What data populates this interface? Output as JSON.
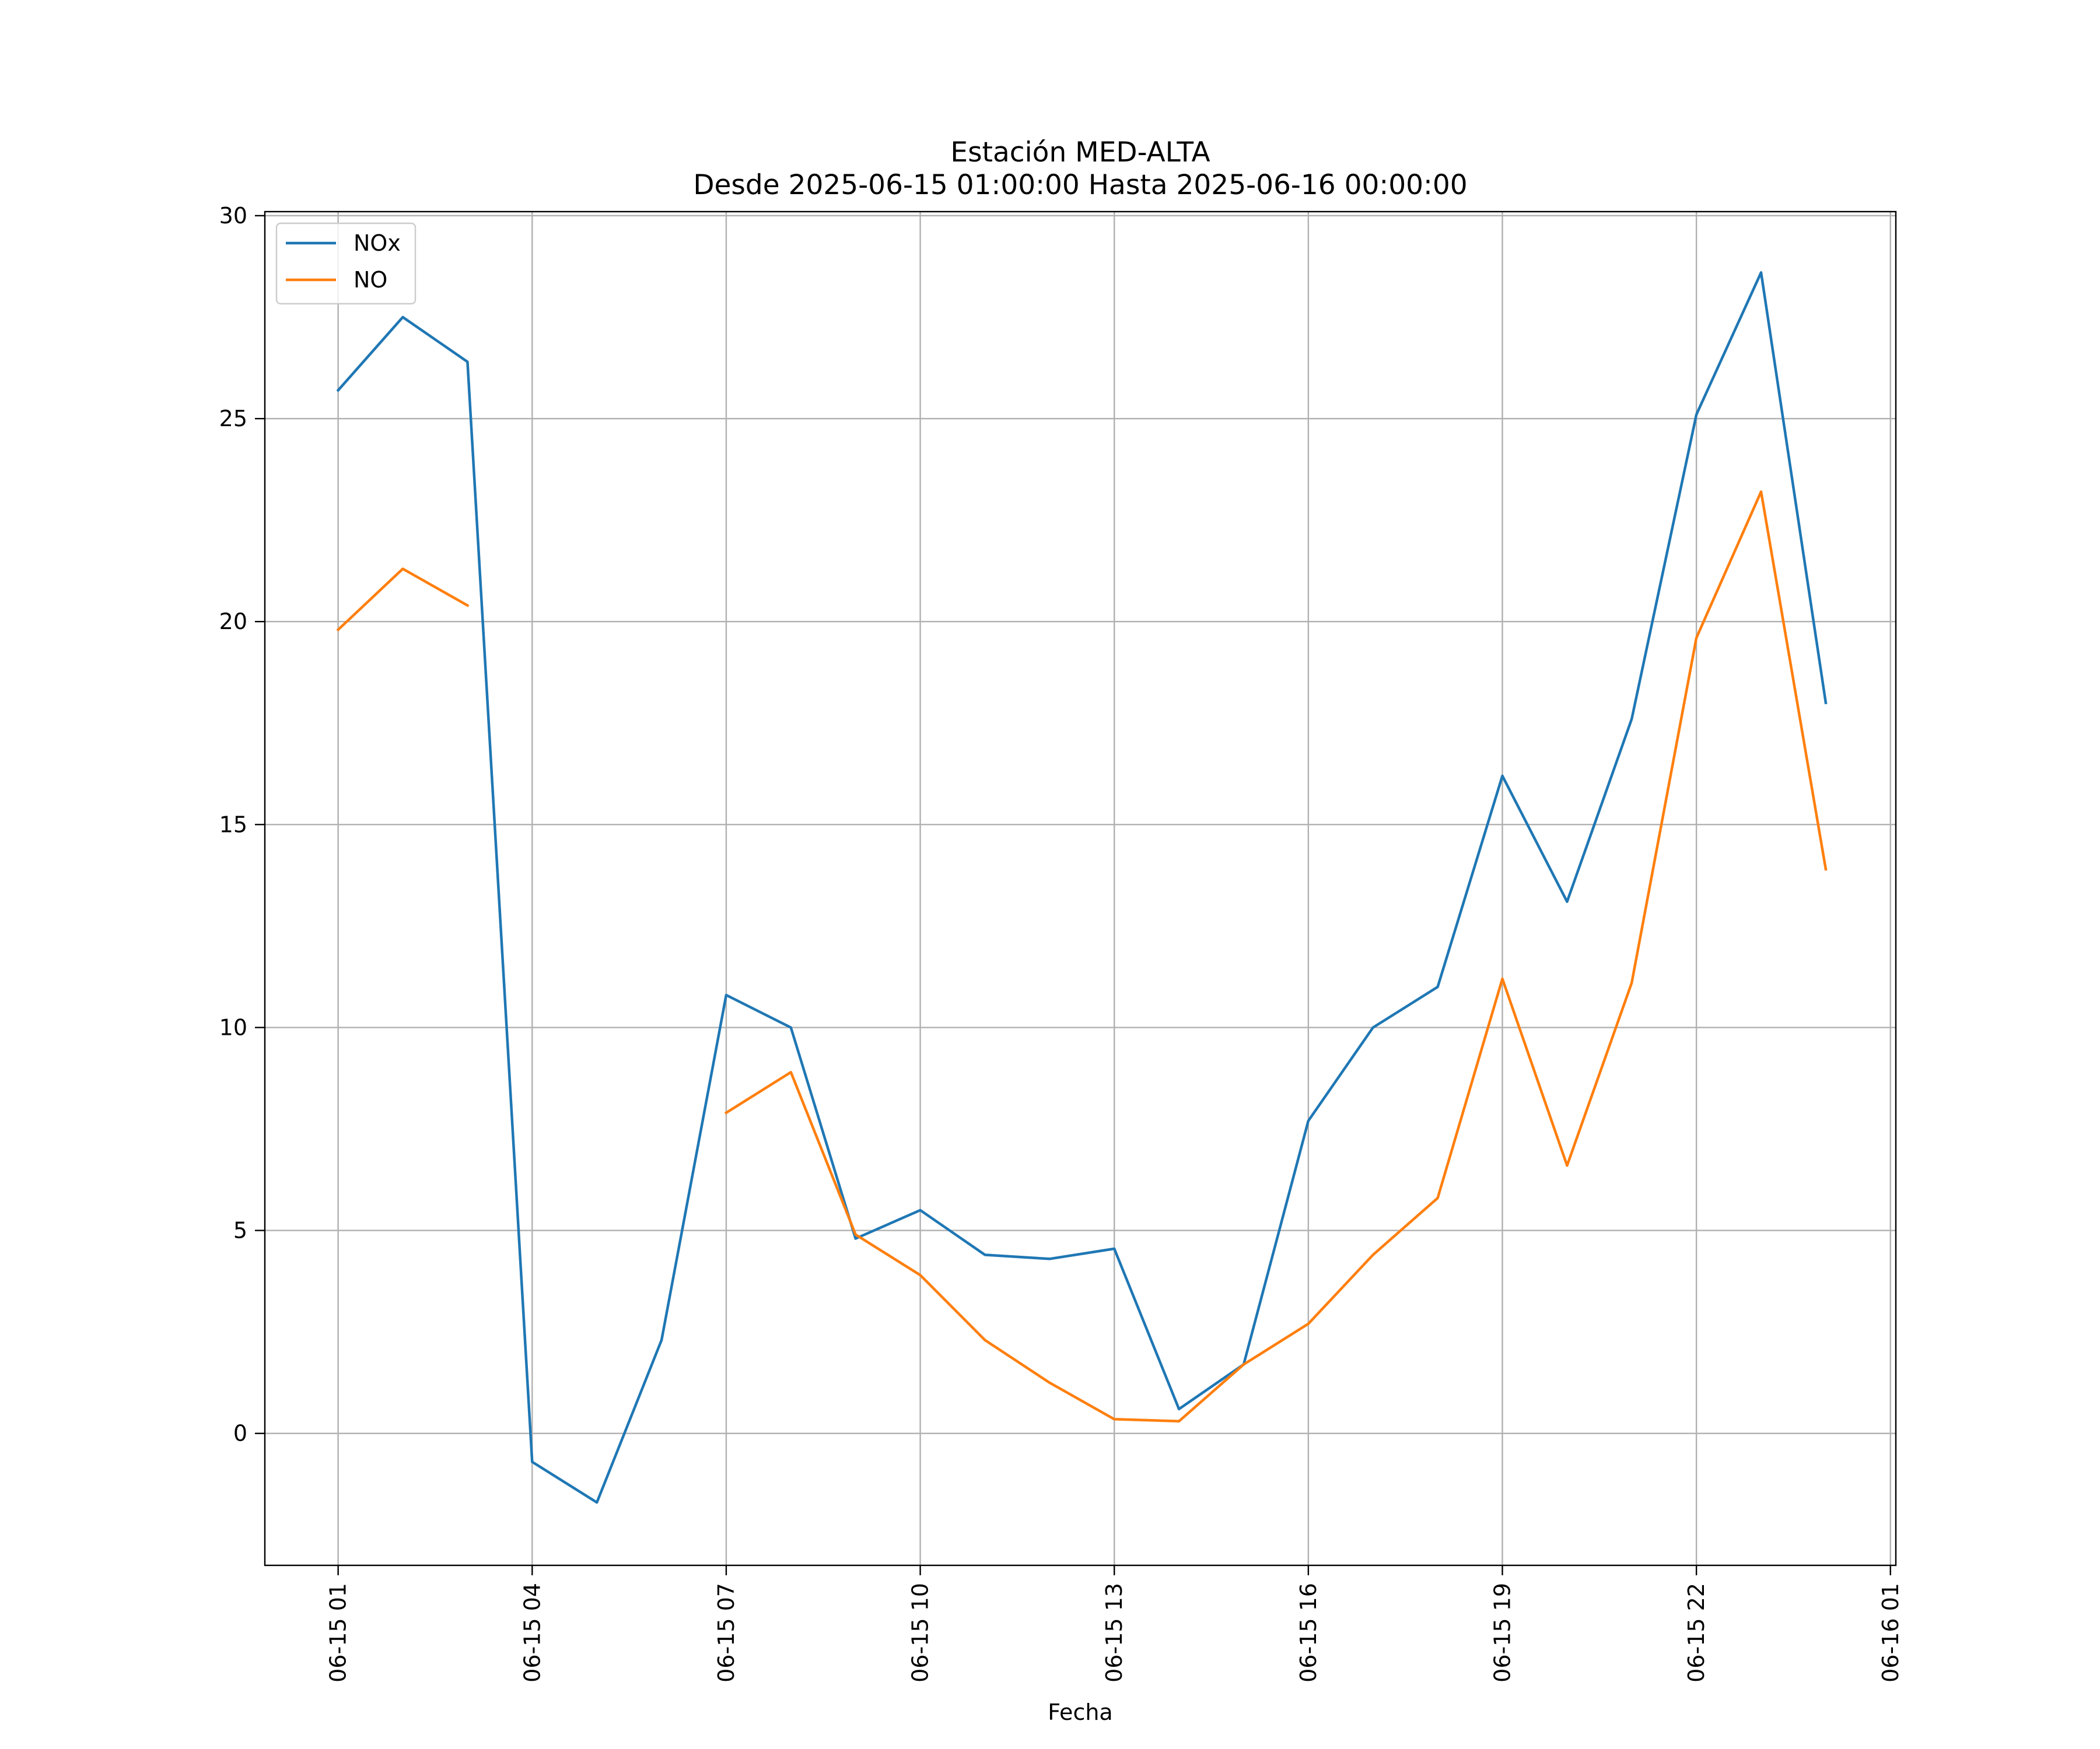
{
  "chart_data": {
    "type": "line",
    "title_lines": [
      "Estación MED-ALTA",
      "Desde 2025-06-15 01:00:00 Hasta 2025-06-16 00:00:00"
    ],
    "xlabel": "Fecha",
    "ylabel": "",
    "x": [
      "2025-06-15 01:00",
      "2025-06-15 02:00",
      "2025-06-15 03:00",
      "2025-06-15 04:00",
      "2025-06-15 05:00",
      "2025-06-15 06:00",
      "2025-06-15 07:00",
      "2025-06-15 08:00",
      "2025-06-15 09:00",
      "2025-06-15 10:00",
      "2025-06-15 11:00",
      "2025-06-15 12:00",
      "2025-06-15 13:00",
      "2025-06-15 14:00",
      "2025-06-15 15:00",
      "2025-06-15 16:00",
      "2025-06-15 17:00",
      "2025-06-15 18:00",
      "2025-06-15 19:00",
      "2025-06-15 20:00",
      "2025-06-15 21:00",
      "2025-06-15 22:00",
      "2025-06-15 23:00",
      "2025-06-16 00:00"
    ],
    "series": [
      {
        "name": "NOx",
        "color": "#1f77b4",
        "values": [
          25.7,
          27.5,
          26.4,
          -0.7,
          -1.7,
          2.3,
          10.8,
          10.0,
          4.8,
          5.5,
          4.4,
          4.3,
          4.55,
          0.6,
          1.7,
          7.7,
          10.0,
          11.0,
          16.2,
          13.1,
          17.6,
          25.1,
          28.6,
          18.0
        ]
      },
      {
        "name": "NO",
        "color": "#ff7f0e",
        "values": [
          19.8,
          21.3,
          20.4,
          null,
          null,
          null,
          7.9,
          8.9,
          4.9,
          3.9,
          2.3,
          1.25,
          0.35,
          0.3,
          1.7,
          2.7,
          4.4,
          5.8,
          11.2,
          6.6,
          11.1,
          19.6,
          23.2,
          13.9
        ]
      }
    ],
    "xticks": [
      {
        "x": "2025-06-15 01:00",
        "label": "06-15 01"
      },
      {
        "x": "2025-06-15 04:00",
        "label": "06-15 04"
      },
      {
        "x": "2025-06-15 07:00",
        "label": "06-15 07"
      },
      {
        "x": "2025-06-15 10:00",
        "label": "06-15 10"
      },
      {
        "x": "2025-06-15 13:00",
        "label": "06-15 13"
      },
      {
        "x": "2025-06-15 16:00",
        "label": "06-15 16"
      },
      {
        "x": "2025-06-15 19:00",
        "label": "06-15 19"
      },
      {
        "x": "2025-06-15 22:00",
        "label": "06-15 22"
      },
      {
        "x": "2025-06-16 01:00",
        "label": "06-16 01"
      }
    ],
    "yticks": [
      0,
      5,
      10,
      15,
      20,
      25,
      30
    ],
    "xlim": [
      "2025-06-14 23:52",
      "2025-06-16 01:05"
    ],
    "ylim": [
      -3.25,
      30.1
    ],
    "grid": true,
    "legend_position": "upper-left"
  }
}
